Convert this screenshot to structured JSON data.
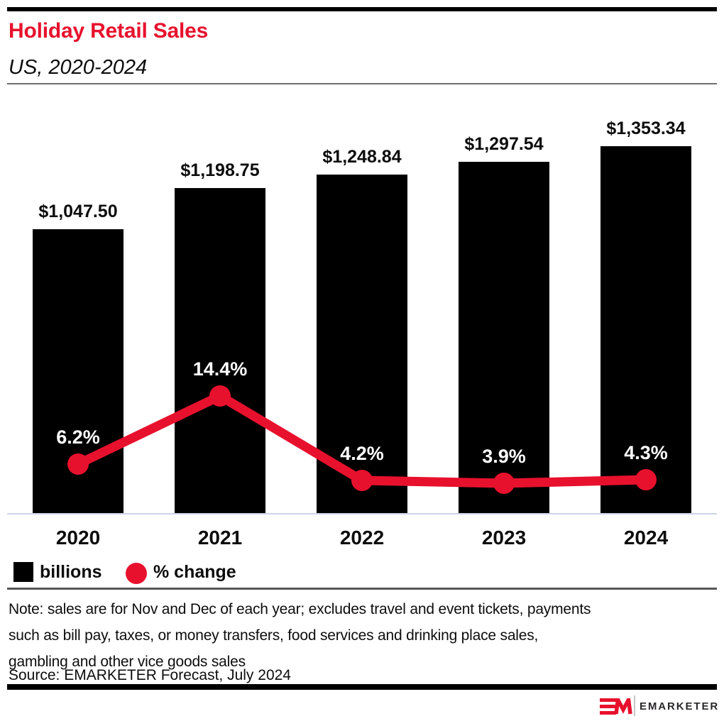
{
  "header": {
    "title": "Holiday Retail Sales",
    "subtitle": "US, 2020-2024"
  },
  "colors": {
    "brand_red": "#e8112d",
    "bar_black": "#000000",
    "axis_line": "#ccd5e6"
  },
  "chart_data": {
    "type": "bar",
    "title": "Holiday Retail Sales",
    "subtitle": "US, 2020-2024",
    "categories": [
      "2020",
      "2021",
      "2022",
      "2023",
      "2024"
    ],
    "series": [
      {
        "name": "billions",
        "type": "bar",
        "values": [
          1047.5,
          1198.75,
          1248.84,
          1297.54,
          1353.34
        ],
        "labels": [
          "$1,047.50",
          "$1,198.75",
          "$1,248.84",
          "$1,297.54",
          "$1,353.34"
        ],
        "color": "#000000"
      },
      {
        "name": "% change",
        "type": "line",
        "values": [
          6.2,
          14.4,
          4.2,
          3.9,
          4.3
        ],
        "labels": [
          "6.2%",
          "14.4%",
          "4.2%",
          "3.9%",
          "4.3%"
        ],
        "color": "#e8112d"
      }
    ],
    "xlabel": "",
    "ylabel": "",
    "grid": false,
    "legend_position": "bottom-left",
    "bar_axis_range": [
      0,
      1400
    ],
    "pct_axis_range": [
      0,
      16
    ]
  },
  "legend": {
    "items": [
      {
        "label": "billions",
        "swatch": "square",
        "color": "#000000"
      },
      {
        "label": "% change",
        "swatch": "circle",
        "color": "#e8112d"
      }
    ]
  },
  "footnote": {
    "note_lines": [
      "Note: sales are for Nov and Dec of each year; excludes travel and event tickets, payments",
      "such as bill pay, taxes, or money transfers, food services and drinking place sales,",
      "gambling and other vice goods sales"
    ],
    "source": "Source: EMARKETER Forecast, July 2024"
  },
  "footer": {
    "brand": "EMARKETER"
  }
}
